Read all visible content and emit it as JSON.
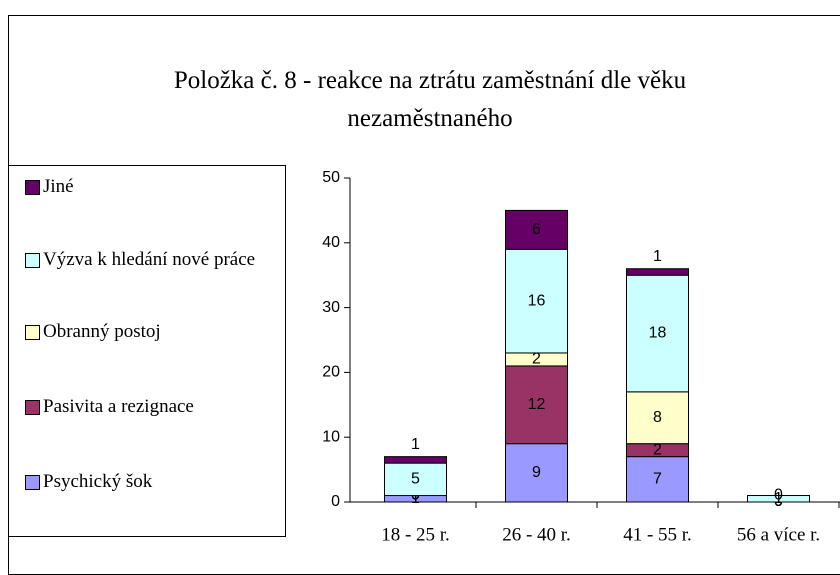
{
  "chart_data": {
    "type": "stacked_bar",
    "title": "Položka č. 8 - reakce na ztrátu zaměstnání dle věku nezaměstnaného",
    "categories": [
      "18 - 25 r.",
      "26 - 40 r.",
      "41 - 55 r.",
      "56 a více r."
    ],
    "series": [
      {
        "name": "Psychický šok",
        "color": "#9999ff",
        "values": [
          1,
          9,
          7,
          0
        ]
      },
      {
        "name": "Pasivita a rezignace",
        "color": "#993366",
        "values": [
          0,
          12,
          2,
          0
        ]
      },
      {
        "name": "Obranný postoj",
        "color": "#ffffcc",
        "values": [
          0,
          2,
          8,
          0
        ]
      },
      {
        "name": "Výzva k hledání nové práce",
        "color": "#ccffff",
        "values": [
          5,
          16,
          18,
          1
        ]
      },
      {
        "name": "Jiné",
        "color": "#660066",
        "values": [
          1,
          6,
          1,
          0
        ]
      }
    ],
    "ylim": [
      0,
      50
    ],
    "yticks": [
      0,
      10,
      20,
      30,
      40,
      50
    ],
    "legend": "left"
  }
}
